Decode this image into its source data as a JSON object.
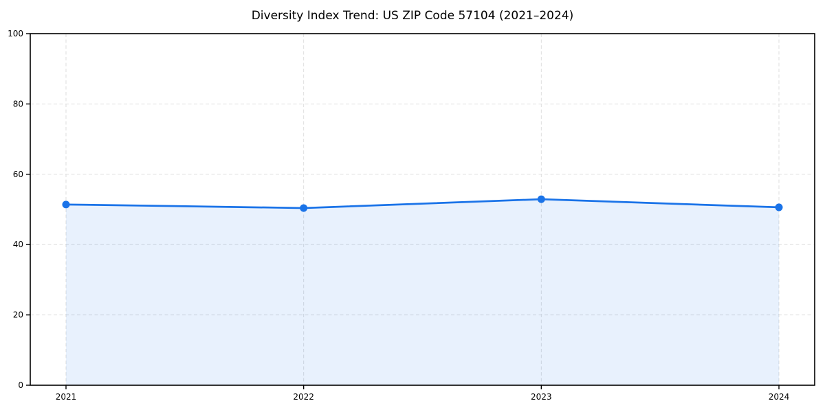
{
  "figure": {
    "background_color": "#ffffff"
  },
  "chart_data": {
    "type": "line",
    "title": "Diversity Index Trend: US ZIP Code 57104 (2021–2024)",
    "x": [
      2021,
      2022,
      2023,
      2024
    ],
    "xticks": [
      "2021",
      "2022",
      "2023",
      "2024"
    ],
    "yticks": [
      0,
      20,
      40,
      60,
      80,
      100
    ],
    "ylim": [
      0,
      100
    ],
    "series": [
      {
        "name": "Diversity Index",
        "values": [
          51.4,
          50.4,
          52.9,
          50.6
        ]
      }
    ],
    "xlabel": "",
    "ylabel": "",
    "grid": true,
    "grid_style": "dashed",
    "legend_position": "none",
    "line_color": "#1a73e8",
    "marker": "circle",
    "fill_color": "#1a73e8",
    "fill_opacity": 0.1,
    "grid_color": "#dedede",
    "spine_color": "#000000",
    "tick_label_color": "#000000"
  }
}
